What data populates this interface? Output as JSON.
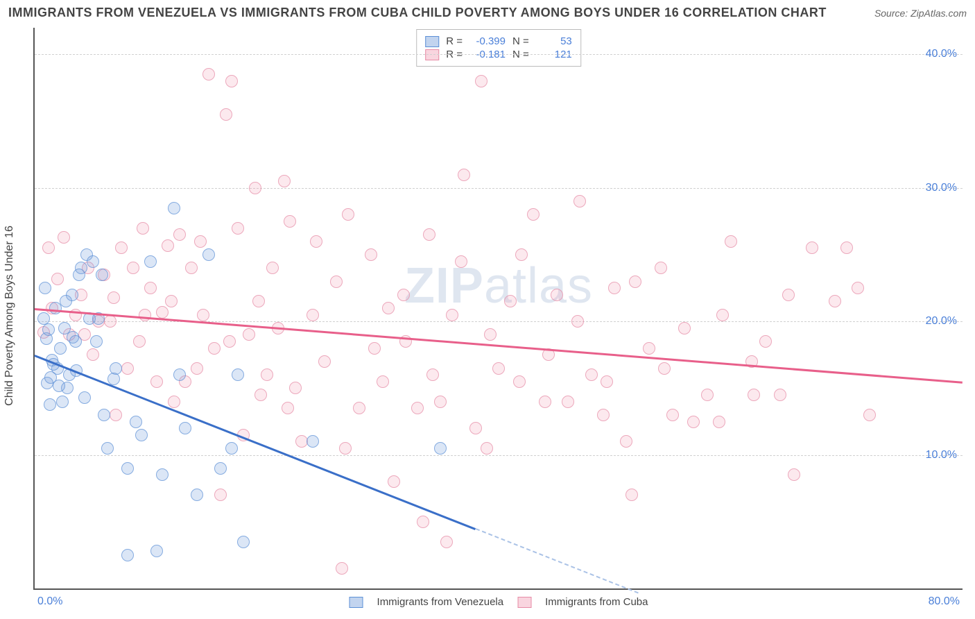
{
  "title": "IMMIGRANTS FROM VENEZUELA VS IMMIGRANTS FROM CUBA CHILD POVERTY AMONG BOYS UNDER 16 CORRELATION CHART",
  "source": "Source: ZipAtlas.com",
  "ylabel": "Child Poverty Among Boys Under 16",
  "watermark_bold": "ZIP",
  "watermark_thin": "atlas",
  "chart": {
    "type": "scatter",
    "xlim": [
      0,
      80
    ],
    "ylim": [
      0,
      42
    ],
    "ytick_values": [
      10,
      20,
      30,
      40
    ],
    "ytick_labels": [
      "10.0%",
      "20.0%",
      "30.0%",
      "40.0%"
    ],
    "xtick_left": "0.0%",
    "xtick_right": "80.0%",
    "grid_color": "#d0d0d0",
    "background_color": "#ffffff",
    "axis_color": "#555555",
    "tick_label_color": "#4a7fd8",
    "series": [
      {
        "name": "Immigrants from Venezuela",
        "key": "venezuela",
        "color_fill": "rgba(120,160,220,0.35)",
        "color_stroke": "#5b8fd6",
        "trend_color": "#3a6fc8",
        "trend": {
          "x1": 0,
          "y1": 17.5,
          "x2": 38,
          "y2": 4.5
        },
        "trend_dash": {
          "x1": 38,
          "y1": 4.5,
          "x2": 52,
          "y2": -0.3
        },
        "R": "-0.399",
        "N": "53",
        "points": [
          [
            1,
            18.7
          ],
          [
            1.2,
            19.4
          ],
          [
            1.5,
            17.1
          ],
          [
            0.8,
            20.2
          ],
          [
            2.2,
            18.0
          ],
          [
            2.6,
            19.5
          ],
          [
            3.0,
            16.0
          ],
          [
            3.3,
            18.8
          ],
          [
            1.1,
            15.4
          ],
          [
            1.4,
            15.8
          ],
          [
            2.0,
            16.5
          ],
          [
            2.8,
            15.0
          ],
          [
            3.6,
            16.3
          ],
          [
            0.9,
            22.5
          ],
          [
            1.8,
            21.0
          ],
          [
            2.4,
            14.0
          ],
          [
            4.0,
            24.0
          ],
          [
            4.5,
            25.0
          ],
          [
            5.0,
            24.5
          ],
          [
            7.0,
            16.5
          ],
          [
            8.0,
            9.0
          ],
          [
            8.7,
            12.5
          ],
          [
            9.2,
            11.5
          ],
          [
            10.0,
            24.5
          ],
          [
            11.0,
            8.5
          ],
          [
            12.0,
            28.5
          ],
          [
            12.5,
            16.0
          ],
          [
            13.0,
            12.0
          ],
          [
            14.0,
            7.0
          ],
          [
            15.0,
            25.0
          ],
          [
            16.0,
            9.0
          ],
          [
            17.0,
            10.5
          ],
          [
            17.5,
            16.0
          ],
          [
            18.0,
            3.5
          ],
          [
            24.0,
            11.0
          ],
          [
            35.0,
            10.5
          ],
          [
            8.0,
            2.5
          ],
          [
            10.5,
            2.8
          ],
          [
            5.8,
            23.5
          ],
          [
            6.3,
            10.5
          ],
          [
            3.2,
            22.0
          ],
          [
            4.7,
            20.2
          ],
          [
            1.6,
            16.8
          ],
          [
            2.1,
            15.2
          ],
          [
            1.3,
            13.8
          ],
          [
            3.8,
            23.5
          ],
          [
            5.3,
            18.5
          ],
          [
            6.8,
            15.7
          ],
          [
            5.5,
            20.2
          ],
          [
            3.5,
            18.5
          ],
          [
            2.7,
            21.5
          ],
          [
            4.3,
            14.3
          ],
          [
            6.0,
            13.0
          ]
        ]
      },
      {
        "name": "Immigrants from Cuba",
        "key": "cuba",
        "color_fill": "rgba(240,150,175,0.28)",
        "color_stroke": "#e68aa5",
        "trend_color": "#e85f8a",
        "trend": {
          "x1": 0,
          "y1": 21.0,
          "x2": 80,
          "y2": 15.5
        },
        "R": "-0.181",
        "N": "121",
        "points": [
          [
            0.8,
            19.2
          ],
          [
            1.2,
            25.5
          ],
          [
            1.5,
            21.0
          ],
          [
            2.0,
            23.2
          ],
          [
            2.5,
            26.3
          ],
          [
            3.0,
            19.0
          ],
          [
            3.5,
            20.5
          ],
          [
            4.0,
            22.0
          ],
          [
            4.6,
            24.0
          ],
          [
            5.0,
            17.5
          ],
          [
            5.5,
            20.0
          ],
          [
            6.0,
            23.5
          ],
          [
            6.5,
            20.0
          ],
          [
            7.0,
            13.0
          ],
          [
            7.5,
            25.5
          ],
          [
            8.0,
            16.5
          ],
          [
            8.5,
            24.0
          ],
          [
            9.0,
            18.5
          ],
          [
            9.5,
            20.5
          ],
          [
            10.0,
            22.5
          ],
          [
            10.5,
            15.5
          ],
          [
            11.0,
            20.7
          ],
          [
            11.5,
            25.7
          ],
          [
            12.0,
            14.0
          ],
          [
            12.5,
            26.5
          ],
          [
            13.0,
            15.5
          ],
          [
            13.5,
            24.0
          ],
          [
            14.0,
            16.5
          ],
          [
            14.5,
            20.5
          ],
          [
            15.0,
            38.5
          ],
          [
            15.5,
            18.0
          ],
          [
            16.0,
            7.0
          ],
          [
            16.5,
            35.5
          ],
          [
            17.0,
            38.0
          ],
          [
            17.5,
            27.0
          ],
          [
            18.0,
            11.5
          ],
          [
            18.5,
            19.0
          ],
          [
            19.0,
            30.0
          ],
          [
            19.5,
            14.5
          ],
          [
            20.0,
            16.0
          ],
          [
            20.5,
            24.0
          ],
          [
            21.0,
            19.5
          ],
          [
            21.5,
            30.5
          ],
          [
            22.0,
            27.5
          ],
          [
            22.5,
            15.0
          ],
          [
            23.0,
            11.0
          ],
          [
            24.0,
            20.5
          ],
          [
            25.0,
            17.0
          ],
          [
            26.0,
            23.0
          ],
          [
            26.5,
            1.5
          ],
          [
            27.0,
            28.0
          ],
          [
            28.0,
            13.5
          ],
          [
            29.0,
            25.0
          ],
          [
            30.0,
            15.5
          ],
          [
            30.5,
            21.0
          ],
          [
            31.0,
            8.0
          ],
          [
            32.0,
            18.5
          ],
          [
            33.0,
            13.5
          ],
          [
            33.5,
            5.0
          ],
          [
            34.0,
            26.5
          ],
          [
            35.0,
            14.0
          ],
          [
            35.5,
            3.5
          ],
          [
            36.0,
            20.5
          ],
          [
            37.0,
            31.0
          ],
          [
            38.0,
            12.0
          ],
          [
            38.5,
            38.0
          ],
          [
            39.0,
            10.5
          ],
          [
            40.0,
            16.5
          ],
          [
            41.0,
            21.5
          ],
          [
            42.0,
            25.0
          ],
          [
            43.0,
            28.0
          ],
          [
            44.0,
            14.0
          ],
          [
            45.0,
            22.0
          ],
          [
            46.0,
            14.0
          ],
          [
            47.0,
            29.0
          ],
          [
            48.0,
            16.0
          ],
          [
            49.0,
            13.0
          ],
          [
            50.0,
            22.5
          ],
          [
            51.0,
            11.0
          ],
          [
            51.5,
            7.0
          ],
          [
            53.0,
            18.0
          ],
          [
            54.0,
            24.0
          ],
          [
            55.0,
            13.0
          ],
          [
            56.0,
            19.5
          ],
          [
            58.0,
            14.5
          ],
          [
            59.0,
            12.5
          ],
          [
            60.0,
            26.0
          ],
          [
            62.0,
            14.5
          ],
          [
            63.0,
            18.5
          ],
          [
            65.0,
            22.0
          ],
          [
            65.5,
            8.5
          ],
          [
            67.0,
            25.5
          ],
          [
            69.0,
            21.5
          ],
          [
            70.0,
            25.5
          ],
          [
            71.0,
            22.5
          ],
          [
            72.0,
            13.0
          ],
          [
            4.3,
            19.0
          ],
          [
            6.8,
            21.8
          ],
          [
            9.3,
            27.0
          ],
          [
            11.8,
            21.5
          ],
          [
            14.3,
            26.0
          ],
          [
            16.8,
            18.5
          ],
          [
            19.3,
            21.5
          ],
          [
            21.8,
            13.5
          ],
          [
            24.3,
            26.0
          ],
          [
            26.8,
            10.5
          ],
          [
            29.3,
            18.0
          ],
          [
            31.8,
            22.0
          ],
          [
            34.3,
            16.0
          ],
          [
            36.8,
            24.5
          ],
          [
            39.3,
            19.0
          ],
          [
            41.8,
            15.5
          ],
          [
            44.3,
            17.5
          ],
          [
            46.8,
            20.0
          ],
          [
            49.3,
            15.5
          ],
          [
            51.8,
            23.0
          ],
          [
            54.3,
            16.5
          ],
          [
            56.8,
            12.5
          ],
          [
            59.3,
            20.5
          ],
          [
            61.8,
            17.0
          ],
          [
            64.3,
            14.5
          ]
        ]
      }
    ]
  },
  "legend": {
    "rows": [
      {
        "sw": "blue",
        "R_label": "R =",
        "R": "-0.399",
        "N_label": "N =",
        "N": "53"
      },
      {
        "sw": "pink",
        "R_label": "R =",
        "R": "-0.181",
        "N_label": "N =",
        "N": "121"
      }
    ]
  },
  "bottom_legend": [
    {
      "sw": "blue",
      "label": "Immigrants from Venezuela"
    },
    {
      "sw": "pink",
      "label": "Immigrants from Cuba"
    }
  ]
}
